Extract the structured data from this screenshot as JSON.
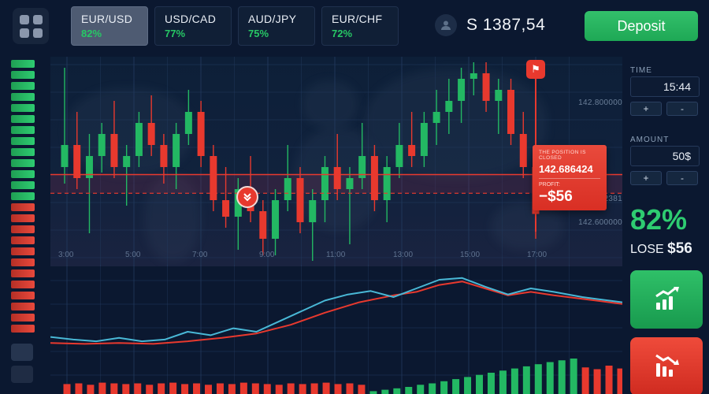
{
  "colors": {
    "green": "#23b863",
    "red": "#e8392e",
    "cyan": "#49b8d6",
    "grid": "#223a5e"
  },
  "topbar": {
    "pairs": [
      {
        "label": "EUR/USD",
        "percent": "82%"
      },
      {
        "label": "USD/CAD",
        "percent": "77%"
      },
      {
        "label": "AUD/JPY",
        "percent": "75%"
      },
      {
        "label": "EUR/CHF",
        "percent": "72%"
      }
    ],
    "balance": "S 1387,54",
    "deposit_label": "Deposit"
  },
  "gauge": {
    "green": 13,
    "red": 12
  },
  "chart_data": {
    "type": "candlestick",
    "price_axis_labels": [
      "142.800000",
      "142.652381",
      "142.600000"
    ],
    "time_axis_labels": [
      "3:00",
      "5:00",
      "7:00",
      "9:00",
      "11:00",
      "13:00",
      "15:00",
      "17:00"
    ],
    "price_max": 142.9,
    "price_min": 142.52,
    "entry_price": 142.686424,
    "dashed_price": 142.6524,
    "candles": [
      [
        142.7,
        142.88,
        142.67,
        142.74
      ],
      [
        142.74,
        142.8,
        142.66,
        142.68
      ],
      [
        142.68,
        142.76,
        142.58,
        142.72
      ],
      [
        142.72,
        142.78,
        142.69,
        142.76
      ],
      [
        142.76,
        142.82,
        142.68,
        142.7
      ],
      [
        142.7,
        142.74,
        142.63,
        142.72
      ],
      [
        142.72,
        142.8,
        142.7,
        142.78
      ],
      [
        142.78,
        142.83,
        142.72,
        142.74
      ],
      [
        142.74,
        142.76,
        142.67,
        142.7
      ],
      [
        142.7,
        142.78,
        142.66,
        142.76
      ],
      [
        142.76,
        142.84,
        142.74,
        142.8
      ],
      [
        142.8,
        142.82,
        142.7,
        142.72
      ],
      [
        142.72,
        142.74,
        142.62,
        142.64
      ],
      [
        142.64,
        142.7,
        142.59,
        142.61
      ],
      [
        142.61,
        142.68,
        142.55,
        142.66
      ],
      [
        142.66,
        142.72,
        142.6,
        142.62
      ],
      [
        142.62,
        142.64,
        142.54,
        142.57
      ],
      [
        142.57,
        142.66,
        142.54,
        142.64
      ],
      [
        142.64,
        142.74,
        142.62,
        142.68
      ],
      [
        142.68,
        142.7,
        142.58,
        142.6
      ],
      [
        142.6,
        142.66,
        142.53,
        142.64
      ],
      [
        142.64,
        142.72,
        142.6,
        142.7
      ],
      [
        142.7,
        142.76,
        142.64,
        142.66
      ],
      [
        142.66,
        142.7,
        142.56,
        142.68
      ],
      [
        142.68,
        142.78,
        142.66,
        142.72
      ],
      [
        142.72,
        142.74,
        142.62,
        142.64
      ],
      [
        142.64,
        142.72,
        142.6,
        142.7
      ],
      [
        142.7,
        142.78,
        142.68,
        142.74
      ],
      [
        142.74,
        142.8,
        142.7,
        142.72
      ],
      [
        142.72,
        142.8,
        142.7,
        142.78
      ],
      [
        142.78,
        142.84,
        142.74,
        142.8
      ],
      [
        142.8,
        142.86,
        142.76,
        142.82
      ],
      [
        142.82,
        142.88,
        142.78,
        142.86
      ],
      [
        142.86,
        142.89,
        142.83,
        142.87
      ],
      [
        142.87,
        142.89,
        142.8,
        142.82
      ],
      [
        142.82,
        142.86,
        142.76,
        142.84
      ],
      [
        142.84,
        142.86,
        142.74,
        142.76
      ],
      [
        142.76,
        142.8,
        142.68,
        142.7
      ],
      [
        142.7,
        142.72,
        142.57,
        142.615
      ]
    ],
    "indicator": {
      "cyan": [
        [
          0,
          0.76
        ],
        [
          0.04,
          0.79
        ],
        [
          0.08,
          0.81
        ],
        [
          0.12,
          0.77
        ],
        [
          0.16,
          0.81
        ],
        [
          0.2,
          0.79
        ],
        [
          0.24,
          0.7
        ],
        [
          0.28,
          0.74
        ],
        [
          0.32,
          0.66
        ],
        [
          0.36,
          0.7
        ],
        [
          0.4,
          0.58
        ],
        [
          0.44,
          0.46
        ],
        [
          0.48,
          0.34
        ],
        [
          0.52,
          0.27
        ],
        [
          0.56,
          0.23
        ],
        [
          0.6,
          0.3
        ],
        [
          0.64,
          0.2
        ],
        [
          0.68,
          0.1
        ],
        [
          0.72,
          0.08
        ],
        [
          0.76,
          0.18
        ],
        [
          0.8,
          0.27
        ],
        [
          0.84,
          0.2
        ],
        [
          0.88,
          0.24
        ],
        [
          0.93,
          0.3
        ],
        [
          1,
          0.36
        ]
      ],
      "red": [
        [
          0,
          0.83
        ],
        [
          0.06,
          0.84
        ],
        [
          0.12,
          0.83
        ],
        [
          0.18,
          0.84
        ],
        [
          0.24,
          0.81
        ],
        [
          0.3,
          0.77
        ],
        [
          0.36,
          0.72
        ],
        [
          0.42,
          0.62
        ],
        [
          0.48,
          0.48
        ],
        [
          0.54,
          0.36
        ],
        [
          0.6,
          0.28
        ],
        [
          0.64,
          0.24
        ],
        [
          0.68,
          0.16
        ],
        [
          0.72,
          0.12
        ],
        [
          0.76,
          0.2
        ],
        [
          0.8,
          0.28
        ],
        [
          0.84,
          0.24
        ],
        [
          0.88,
          0.28
        ],
        [
          0.93,
          0.32
        ],
        [
          1,
          0.38
        ]
      ],
      "histogram": [
        -0.28,
        -0.3,
        -0.26,
        -0.32,
        -0.3,
        -0.28,
        -0.3,
        -0.26,
        -0.3,
        -0.32,
        -0.28,
        -0.3,
        -0.26,
        -0.3,
        -0.28,
        -0.32,
        -0.3,
        -0.28,
        -0.26,
        -0.3,
        -0.28,
        -0.3,
        -0.32,
        -0.28,
        -0.3,
        -0.26,
        0.08,
        0.12,
        0.16,
        0.2,
        0.26,
        0.3,
        0.36,
        0.42,
        0.48,
        0.54,
        0.6,
        0.66,
        0.72,
        0.78,
        0.84,
        0.9,
        0.95,
        1,
        -0.75,
        -0.7,
        -0.8,
        -0.72
      ]
    }
  },
  "position_popup": {
    "title": "THE POSITION IS CLOSED",
    "price": "142.686424",
    "profit_label": "PROFIT:",
    "profit_value": "−$56"
  },
  "right_panel": {
    "time_label": "TIME",
    "time_value": "15:44",
    "amount_label": "AMOUNT",
    "amount_value": "50$",
    "plus_label": "+",
    "minus_label": "-",
    "payout_percent": "82%",
    "lose_label": "LOSE",
    "lose_value": "$56"
  }
}
